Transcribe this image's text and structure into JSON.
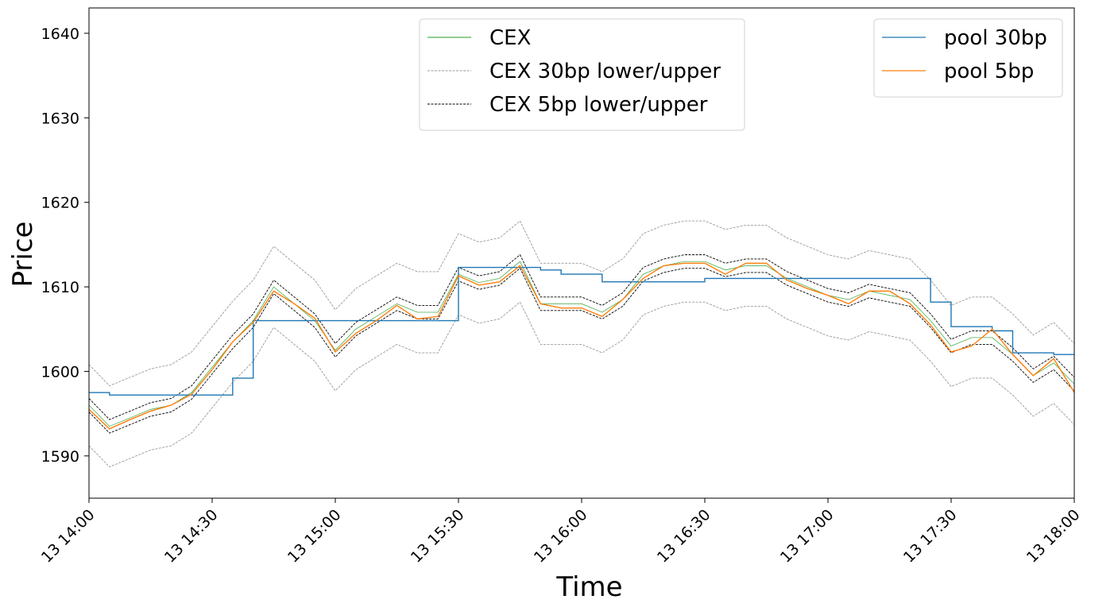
{
  "chart_data": {
    "type": "line",
    "xlabel": "Time",
    "ylabel": "Price",
    "x": [
      "13 14:00",
      "13 14:05",
      "13 14:10",
      "13 14:15",
      "13 14:20",
      "13 14:25",
      "13 14:30",
      "13 14:35",
      "13 14:40",
      "13 14:45",
      "13 14:50",
      "13 14:55",
      "13 15:00",
      "13 15:05",
      "13 15:10",
      "13 15:15",
      "13 15:20",
      "13 15:25",
      "13 15:30",
      "13 15:35",
      "13 15:40",
      "13 15:45",
      "13 15:50",
      "13 15:55",
      "13 16:00",
      "13 16:05",
      "13 16:10",
      "13 16:15",
      "13 16:20",
      "13 16:25",
      "13 16:30",
      "13 16:35",
      "13 16:40",
      "13 16:45",
      "13 16:50",
      "13 16:55",
      "13 17:00",
      "13 17:05",
      "13 17:10",
      "13 17:15",
      "13 17:20",
      "13 17:25",
      "13 17:30",
      "13 17:35",
      "13 17:40",
      "13 17:45",
      "13 17:50",
      "13 17:55",
      "13 18:00"
    ],
    "xlim": [
      "13 14:00",
      "13 18:00"
    ],
    "xticks": [
      "13 14:00",
      "13 14:30",
      "13 15:00",
      "13 15:30",
      "13 16:00",
      "13 16:30",
      "13 17:00",
      "13 17:30",
      "13 18:00"
    ],
    "ylim": [
      1585,
      1643
    ],
    "yticks": [
      1590,
      1600,
      1610,
      1620,
      1630,
      1640
    ],
    "series": [
      {
        "name": "CEX",
        "color": "#4caf50",
        "legend": "upper center",
        "values": [
          1596,
          1593.5,
          1594.5,
          1595.5,
          1596,
          1597.5,
          1600.5,
          1603.5,
          1606,
          1610,
          1608,
          1606,
          1602.5,
          1605,
          1606.5,
          1608,
          1607,
          1607,
          1611.5,
          1610.5,
          1611,
          1613,
          1608,
          1608,
          1608,
          1607,
          1608.5,
          1611.5,
          1612.5,
          1613,
          1613,
          1612,
          1612.5,
          1612.5,
          1611,
          1610,
          1609,
          1608.5,
          1609.5,
          1609,
          1608.5,
          1606,
          1603,
          1604,
          1604,
          1602,
          1599.5,
          1601,
          1598.5
        ]
      },
      {
        "name": "CEX 30bp lower/upper",
        "color": "#999999",
        "dashed": true,
        "legend": "upper center",
        "lower": [
          1591.2,
          1588.7,
          1589.7,
          1590.7,
          1591.2,
          1592.7,
          1595.7,
          1598.7,
          1601.2,
          1605.2,
          1603.2,
          1601.2,
          1597.7,
          1600.2,
          1601.7,
          1603.2,
          1602.2,
          1602.2,
          1606.7,
          1605.7,
          1606.2,
          1608.2,
          1603.2,
          1603.2,
          1603.2,
          1602.2,
          1603.7,
          1606.7,
          1607.7,
          1608.2,
          1608.2,
          1607.2,
          1607.7,
          1607.7,
          1606.2,
          1605.2,
          1604.2,
          1603.7,
          1604.7,
          1604.2,
          1603.7,
          1601.2,
          1598.2,
          1599.2,
          1599.2,
          1597.2,
          1594.7,
          1596.2,
          1593.7
        ],
        "upper": [
          1600.8,
          1598.3,
          1599.3,
          1600.3,
          1600.8,
          1602.3,
          1605.3,
          1608.3,
          1610.8,
          1614.8,
          1612.8,
          1610.8,
          1607.3,
          1609.8,
          1611.3,
          1612.8,
          1611.8,
          1611.8,
          1616.3,
          1615.3,
          1615.8,
          1617.8,
          1612.8,
          1612.8,
          1612.8,
          1611.8,
          1613.3,
          1616.3,
          1617.3,
          1617.8,
          1617.8,
          1616.8,
          1617.3,
          1617.3,
          1615.8,
          1614.8,
          1613.8,
          1613.3,
          1614.3,
          1613.8,
          1613.3,
          1610.8,
          1607.8,
          1608.8,
          1608.8,
          1606.8,
          1604.3,
          1605.8,
          1603.3
        ]
      },
      {
        "name": "CEX 5bp lower/upper",
        "color": "#000000",
        "dashed": true,
        "legend": "upper center",
        "lower": [
          1595.2,
          1592.7,
          1593.7,
          1594.7,
          1595.2,
          1596.7,
          1599.7,
          1602.7,
          1605.2,
          1609.2,
          1607.2,
          1605.2,
          1601.7,
          1604.2,
          1605.7,
          1607.2,
          1606.2,
          1606.2,
          1610.7,
          1609.7,
          1610.2,
          1612.2,
          1607.2,
          1607.2,
          1607.2,
          1606.2,
          1607.7,
          1610.7,
          1611.7,
          1612.2,
          1612.2,
          1611.2,
          1611.7,
          1611.7,
          1610.2,
          1609.2,
          1608.2,
          1607.7,
          1608.7,
          1608.2,
          1607.7,
          1605.2,
          1602.2,
          1603.2,
          1603.2,
          1601.2,
          1598.7,
          1600.2,
          1597.7
        ],
        "upper": [
          1596.8,
          1594.3,
          1595.3,
          1596.3,
          1596.8,
          1598.3,
          1601.3,
          1604.3,
          1606.8,
          1610.8,
          1608.8,
          1606.8,
          1603.3,
          1605.8,
          1607.3,
          1608.8,
          1607.8,
          1607.8,
          1612.3,
          1611.3,
          1611.8,
          1613.8,
          1608.8,
          1608.8,
          1608.8,
          1607.8,
          1609.3,
          1612.3,
          1613.3,
          1613.8,
          1613.8,
          1612.8,
          1613.3,
          1613.3,
          1611.8,
          1610.8,
          1609.8,
          1609.3,
          1610.3,
          1609.8,
          1609.3,
          1606.8,
          1603.8,
          1604.8,
          1604.8,
          1602.8,
          1600.3,
          1601.8,
          1599.3
        ]
      },
      {
        "name": "pool 30bp",
        "color": "#1f77b4",
        "step": "post",
        "legend": "upper right",
        "values": [
          1597.5,
          1597.2,
          1597.2,
          1597.2,
          1597.2,
          1597.2,
          1597.2,
          1599.2,
          1606,
          1606,
          1606,
          1606,
          1606,
          1606,
          1606,
          1606,
          1606,
          1606,
          1612.3,
          1612.3,
          1612.3,
          1612.3,
          1612,
          1611.5,
          1611.5,
          1610.6,
          1610.6,
          1610.6,
          1610.6,
          1610.6,
          1611,
          1611,
          1611,
          1611,
          1611,
          1611,
          1611,
          1611,
          1611,
          1611,
          1611,
          1608.2,
          1605.3,
          1605.3,
          1604.8,
          1602.2,
          1602.2,
          1602,
          1602
        ]
      },
      {
        "name": "pool 5bp",
        "color": "#ff7f0e",
        "legend": "upper right",
        "values": [
          1595.5,
          1593.2,
          1594.3,
          1595.3,
          1596,
          1597.3,
          1600.2,
          1603.5,
          1605.8,
          1609.5,
          1608,
          1606.3,
          1602.3,
          1604.5,
          1606,
          1607.8,
          1606.2,
          1606.5,
          1611.3,
          1610.2,
          1610.6,
          1612.5,
          1608,
          1607.5,
          1607.5,
          1606.5,
          1608.5,
          1611,
          1612.5,
          1612.8,
          1612.8,
          1611.5,
          1612.8,
          1612.8,
          1610.8,
          1609.8,
          1609,
          1608,
          1609.5,
          1609.5,
          1608,
          1605.5,
          1602.3,
          1603,
          1605,
          1602,
          1599.5,
          1601.5,
          1597.5
        ]
      }
    ]
  }
}
